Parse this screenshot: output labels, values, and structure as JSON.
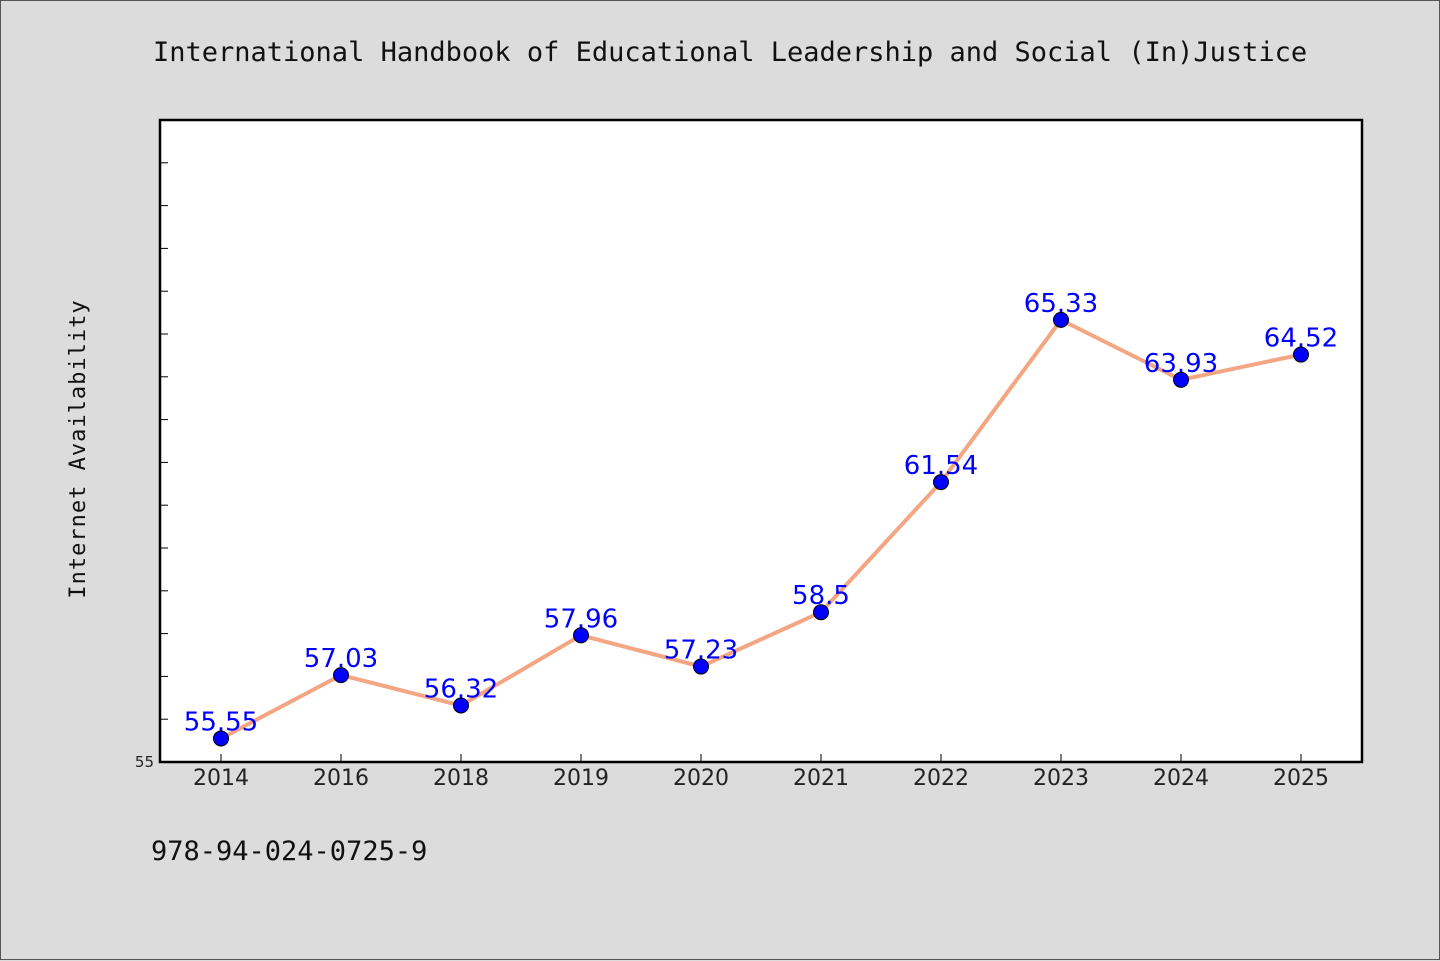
{
  "page": {
    "title": "International Handbook of Educational Leadership and Social (In)Justice",
    "footer": "978-94-024-0725-9"
  },
  "colors": {
    "background": "#dcdcdc",
    "plot_background": "#ffffff",
    "line": "#f4a582",
    "marker": "#0000ff",
    "data_label": "#0000ff"
  },
  "chart_data": {
    "type": "line",
    "title": "",
    "xlabel": "",
    "ylabel": "Internet Availability",
    "categories": [
      "2014",
      "2016",
      "2018",
      "2019",
      "2020",
      "2021",
      "2022",
      "2023",
      "2024",
      "2025"
    ],
    "series": [
      {
        "values": [
          55.55,
          57.03,
          56.32,
          57.96,
          57.23,
          58.5,
          61.54,
          65.33,
          63.93,
          64.52
        ]
      }
    ],
    "ylim": [
      55,
      70
    ],
    "y_tick_step": 1,
    "y_tick_labels_shown": [
      "55"
    ],
    "data_labels": true,
    "grid": false,
    "legend": "none"
  }
}
